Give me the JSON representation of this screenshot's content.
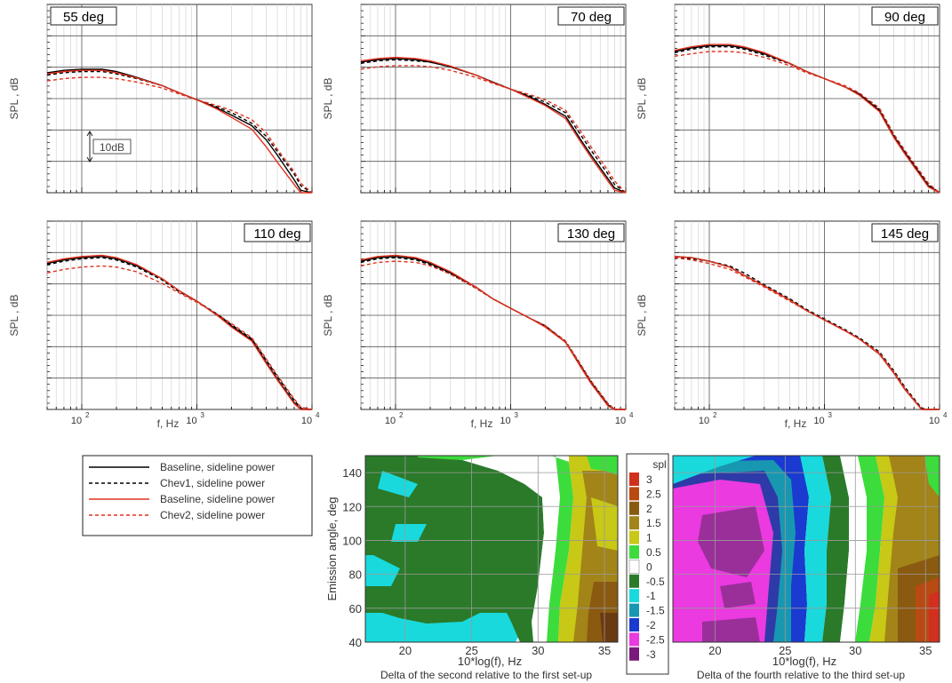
{
  "chart_data": [
    {
      "type": "line",
      "panel_label": "55 deg",
      "ylabel": "SPL , dB",
      "xlabel": "",
      "x_ticks": [
        "10",
        "10"
      ],
      "x_tick_exp": [
        "2",
        "3",
        "4"
      ],
      "xlim": [
        50,
        10000
      ],
      "ylim": [
        0,
        8
      ],
      "x": [
        50,
        70,
        100,
        150,
        200,
        300,
        500,
        700,
        1000,
        1500,
        2000,
        3000,
        4000,
        5000,
        7000,
        8000,
        10000
      ],
      "series": [
        {
          "name": "Baseline, sideline power",
          "values": [
            5.1,
            5.2,
            5.25,
            5.25,
            5.15,
            4.9,
            4.55,
            4.25,
            3.95,
            3.6,
            3.3,
            2.85,
            2.25,
            1.6,
            0.55,
            0.1,
            0
          ]
        },
        {
          "name": "Chev1, sideline power",
          "values": [
            5.0,
            5.1,
            5.15,
            5.15,
            5.05,
            4.85,
            4.55,
            4.25,
            3.95,
            3.65,
            3.4,
            2.95,
            2.4,
            1.75,
            0.8,
            0.3,
            0
          ]
        },
        {
          "name": "Baseline, sideline power",
          "values": [
            5.05,
            5.15,
            5.2,
            5.2,
            5.1,
            4.88,
            4.55,
            4.25,
            3.95,
            3.55,
            3.2,
            2.7,
            1.95,
            1.3,
            0.35,
            0,
            0
          ]
        },
        {
          "name": "Chev2, sideline power",
          "values": [
            4.75,
            4.85,
            4.9,
            4.9,
            4.85,
            4.7,
            4.45,
            4.2,
            3.95,
            3.7,
            3.5,
            3.1,
            2.55,
            1.85,
            0.9,
            0.4,
            0
          ]
        }
      ],
      "annotation": "10dB"
    },
    {
      "type": "line",
      "panel_label": "70 deg",
      "ylabel": "SPL , dB",
      "xlabel": "",
      "x_ticks": [
        "10",
        "10"
      ],
      "x_tick_exp": [
        "2",
        "3",
        "4"
      ],
      "xlim": [
        50,
        10000
      ],
      "ylim": [
        0,
        8
      ],
      "x": [
        50,
        70,
        100,
        150,
        200,
        300,
        500,
        700,
        1000,
        1500,
        2000,
        3000,
        4000,
        5000,
        7000,
        8000,
        10000
      ],
      "series": [
        {
          "name": "Baseline, sideline power",
          "values": [
            5.55,
            5.65,
            5.7,
            5.65,
            5.55,
            5.35,
            5.0,
            4.7,
            4.4,
            4.05,
            3.75,
            3.25,
            2.3,
            1.6,
            0.6,
            0.2,
            0
          ]
        },
        {
          "name": "Chev1, sideline power",
          "values": [
            5.5,
            5.6,
            5.65,
            5.6,
            5.55,
            5.35,
            5.0,
            4.7,
            4.4,
            4.1,
            3.85,
            3.4,
            2.5,
            1.8,
            0.8,
            0.35,
            0
          ]
        },
        {
          "name": "Baseline, sideline power",
          "values": [
            5.6,
            5.7,
            5.75,
            5.7,
            5.6,
            5.38,
            5.0,
            4.68,
            4.4,
            4.0,
            3.7,
            3.15,
            2.2,
            1.5,
            0.5,
            0.1,
            0
          ]
        },
        {
          "name": "Chev2, sideline power",
          "values": [
            5.25,
            5.35,
            5.4,
            5.4,
            5.35,
            5.2,
            4.9,
            4.65,
            4.4,
            4.15,
            3.95,
            3.5,
            2.65,
            1.95,
            0.95,
            0.5,
            0
          ]
        }
      ]
    },
    {
      "type": "line",
      "panel_label": "90 deg",
      "ylabel": "SPL , dB",
      "xlabel": "",
      "x_ticks": [
        "10",
        "10"
      ],
      "x_tick_exp": [
        "2",
        "3",
        "4"
      ],
      "xlim": [
        50,
        10000
      ],
      "ylim": [
        0,
        8
      ],
      "x": [
        50,
        70,
        100,
        150,
        200,
        300,
        500,
        700,
        1000,
        1500,
        2000,
        3000,
        4000,
        5000,
        7000,
        8000,
        10000
      ],
      "series": [
        {
          "name": "Baseline, sideline power",
          "values": [
            6.0,
            6.15,
            6.25,
            6.25,
            6.15,
            5.9,
            5.5,
            5.15,
            4.85,
            4.5,
            4.2,
            3.5,
            2.4,
            1.7,
            0.7,
            0.3,
            0
          ]
        },
        {
          "name": "Chev1, sideline power",
          "values": [
            5.95,
            6.1,
            6.2,
            6.2,
            6.1,
            5.85,
            5.48,
            5.15,
            4.85,
            4.5,
            4.2,
            3.55,
            2.45,
            1.75,
            0.75,
            0.35,
            0
          ]
        },
        {
          "name": "Baseline, sideline power",
          "values": [
            6.05,
            6.2,
            6.3,
            6.3,
            6.2,
            5.95,
            5.5,
            5.15,
            4.85,
            4.5,
            4.15,
            3.45,
            2.35,
            1.65,
            0.65,
            0.25,
            0
          ]
        },
        {
          "name": "Chev2, sideline power",
          "values": [
            5.8,
            5.9,
            6.0,
            6.0,
            5.95,
            5.75,
            5.4,
            5.1,
            4.85,
            4.55,
            4.25,
            3.6,
            2.5,
            1.8,
            0.8,
            0.4,
            0
          ]
        }
      ]
    },
    {
      "type": "line",
      "panel_label": "110 deg",
      "ylabel": "SPL , dB",
      "xlabel": "f, Hz",
      "x_ticks": [
        "10",
        "10",
        "10"
      ],
      "x_tick_exp": [
        "2",
        "3",
        "4"
      ],
      "xlim": [
        50,
        10000
      ],
      "ylim": [
        0,
        8
      ],
      "x": [
        50,
        70,
        100,
        150,
        200,
        300,
        500,
        700,
        1000,
        1500,
        2000,
        3000,
        4000,
        5000,
        7000,
        8000,
        10000
      ],
      "series": [
        {
          "name": "Baseline, sideline power",
          "values": [
            6.2,
            6.35,
            6.45,
            6.5,
            6.4,
            6.1,
            5.55,
            5.05,
            4.6,
            4.0,
            3.55,
            2.95,
            2.0,
            1.3,
            0.3,
            0,
            0
          ]
        },
        {
          "name": "Chev1, sideline power",
          "values": [
            6.15,
            6.3,
            6.4,
            6.45,
            6.35,
            6.05,
            5.5,
            5.0,
            4.6,
            4.05,
            3.6,
            3.0,
            2.1,
            1.4,
            0.4,
            0.05,
            0
          ]
        },
        {
          "name": "Baseline, sideline power",
          "values": [
            6.25,
            6.4,
            6.5,
            6.55,
            6.45,
            6.15,
            5.55,
            5.05,
            4.6,
            4.0,
            3.5,
            2.9,
            1.95,
            1.25,
            0.25,
            0,
            0
          ]
        },
        {
          "name": "Chev2, sideline power",
          "values": [
            5.8,
            5.95,
            6.05,
            6.1,
            6.05,
            5.85,
            5.35,
            4.95,
            4.55,
            4.05,
            3.65,
            3.05,
            2.15,
            1.45,
            0.45,
            0.1,
            0
          ]
        }
      ]
    },
    {
      "type": "line",
      "panel_label": "130 deg",
      "ylabel": "SPL , dB",
      "xlabel": "f, Hz",
      "x_ticks": [
        "10",
        "10",
        "10"
      ],
      "x_tick_exp": [
        "2",
        "3",
        "4"
      ],
      "xlim": [
        50,
        10000
      ],
      "ylim": [
        0,
        8
      ],
      "x": [
        50,
        70,
        100,
        150,
        200,
        300,
        500,
        700,
        1000,
        1500,
        2000,
        3000,
        4000,
        5000,
        7000,
        8000,
        10000
      ],
      "series": [
        {
          "name": "Baseline, sideline power",
          "values": [
            6.3,
            6.45,
            6.5,
            6.4,
            6.2,
            5.8,
            5.2,
            4.7,
            4.3,
            3.85,
            3.55,
            2.85,
            1.9,
            1.15,
            0.2,
            0,
            0
          ]
        },
        {
          "name": "Chev1, sideline power",
          "values": [
            6.25,
            6.4,
            6.45,
            6.35,
            6.15,
            5.75,
            5.15,
            4.7,
            4.3,
            3.85,
            3.55,
            2.9,
            1.95,
            1.2,
            0.25,
            0,
            0
          ]
        },
        {
          "name": "Baseline, sideline power",
          "values": [
            6.35,
            6.5,
            6.55,
            6.45,
            6.25,
            5.85,
            5.2,
            4.7,
            4.3,
            3.85,
            3.5,
            2.85,
            1.85,
            1.1,
            0.15,
            0,
            0
          ]
        },
        {
          "name": "Chev2, sideline power",
          "values": [
            6.1,
            6.25,
            6.3,
            6.25,
            6.1,
            5.75,
            5.15,
            4.7,
            4.3,
            3.85,
            3.55,
            2.9,
            1.95,
            1.2,
            0.25,
            0,
            0
          ]
        }
      ]
    },
    {
      "type": "line",
      "panel_label": "145 deg",
      "ylabel": "SPL , dB",
      "xlabel": "f, Hz",
      "x_ticks": [
        "10",
        "10",
        "10"
      ],
      "x_tick_exp": [
        "2",
        "3",
        "4"
      ],
      "xlim": [
        50,
        10000
      ],
      "ylim": [
        0,
        8
      ],
      "x": [
        50,
        70,
        100,
        150,
        200,
        300,
        500,
        700,
        1000,
        1500,
        2000,
        3000,
        4000,
        5000,
        7000,
        8000,
        10000
      ],
      "series": [
        {
          "name": "Baseline, sideline power",
          "values": [
            6.5,
            6.45,
            6.3,
            6.05,
            5.7,
            5.25,
            4.65,
            4.2,
            3.8,
            3.35,
            3.0,
            2.35,
            1.55,
            0.85,
            0,
            0,
            0
          ]
        },
        {
          "name": "Chev1, sideline power",
          "values": [
            6.45,
            6.4,
            6.3,
            6.1,
            5.8,
            5.3,
            4.7,
            4.25,
            3.85,
            3.4,
            3.05,
            2.45,
            1.65,
            0.95,
            0.05,
            0,
            0
          ]
        },
        {
          "name": "Baseline, sideline power",
          "values": [
            6.5,
            6.45,
            6.3,
            6.05,
            5.7,
            5.25,
            4.65,
            4.2,
            3.8,
            3.35,
            3.0,
            2.35,
            1.55,
            0.85,
            0,
            0,
            0
          ]
        },
        {
          "name": "Chev2, sideline power",
          "values": [
            6.45,
            6.35,
            6.2,
            5.95,
            5.65,
            5.2,
            4.6,
            4.2,
            3.8,
            3.35,
            3.0,
            2.4,
            1.6,
            0.9,
            0,
            0,
            0
          ]
        }
      ]
    },
    {
      "type": "heatmap",
      "title": "Delta of the second relative to the first set-up",
      "xlabel": "10*log(f), Hz",
      "ylabel": "Emission angle, deg",
      "xlim": [
        17,
        36
      ],
      "ylim": [
        40,
        150
      ],
      "x_ticks": [
        20,
        25,
        30,
        35
      ],
      "y_ticks": [
        40,
        60,
        80,
        100,
        120,
        140
      ],
      "regions": [
        {
          "x": [
            17,
            30
          ],
          "y": [
            40,
            150
          ],
          "value": -0.5,
          "label": "-0.5"
        },
        {
          "x": [
            17,
            30
          ],
          "y": [
            40,
            150
          ],
          "value": 0,
          "label": "0"
        },
        {
          "x": [
            30,
            36
          ],
          "y": [
            40,
            150
          ],
          "value": 1,
          "label": "1"
        }
      ]
    },
    {
      "type": "heatmap",
      "title": "Delta of the fourth relative to the third set-up",
      "xlabel": "10*log(f), Hz",
      "ylabel": "",
      "xlim": [
        17,
        36
      ],
      "ylim": [
        40,
        150
      ],
      "x_ticks": [
        20,
        25,
        30,
        35
      ],
      "y_ticks": [],
      "regions": [
        {
          "x": [
            17,
            26
          ],
          "y": [
            40,
            150
          ],
          "value": -2.5,
          "label": "-2.5"
        },
        {
          "x": [
            26,
            30
          ],
          "y": [
            40,
            150
          ],
          "value": -1.5,
          "label": "-1.5"
        },
        {
          "x": [
            30,
            36
          ],
          "y": [
            40,
            150
          ],
          "value": 1.5,
          "label": "1.5"
        }
      ]
    }
  ],
  "legend": {
    "entries": [
      {
        "label": "Baseline, sideline power",
        "color": "#000000",
        "dash": "solid"
      },
      {
        "label": "Chev1, sideline power",
        "color": "#000000",
        "dash": "dashed"
      },
      {
        "label": "Baseline, sideline power",
        "color": "#e0301e",
        "dash": "solid"
      },
      {
        "label": "Chev2, sideline power",
        "color": "#e0301e",
        "dash": "dashed"
      }
    ]
  },
  "colorbar": {
    "title": "spl",
    "levels": [
      {
        "label": "3",
        "color": "#d2301e"
      },
      {
        "label": "2.5",
        "color": "#b84a12"
      },
      {
        "label": "2",
        "color": "#8a5a10"
      },
      {
        "label": "1.5",
        "color": "#a28418"
      },
      {
        "label": "1",
        "color": "#c8c816"
      },
      {
        "label": "0.5",
        "color": "#3cdc3c"
      },
      {
        "label": "0",
        "color": "#ffffff"
      },
      {
        "label": "-0.5",
        "color": "#2a7a2a"
      },
      {
        "label": "-1",
        "color": "#19d9dc"
      },
      {
        "label": "-1.5",
        "color": "#1898b0"
      },
      {
        "label": "-2",
        "color": "#1a3ad0"
      },
      {
        "label": "-2.5",
        "color": "#ea3ae0"
      },
      {
        "label": "-3",
        "color": "#7a1a7a"
      }
    ]
  }
}
